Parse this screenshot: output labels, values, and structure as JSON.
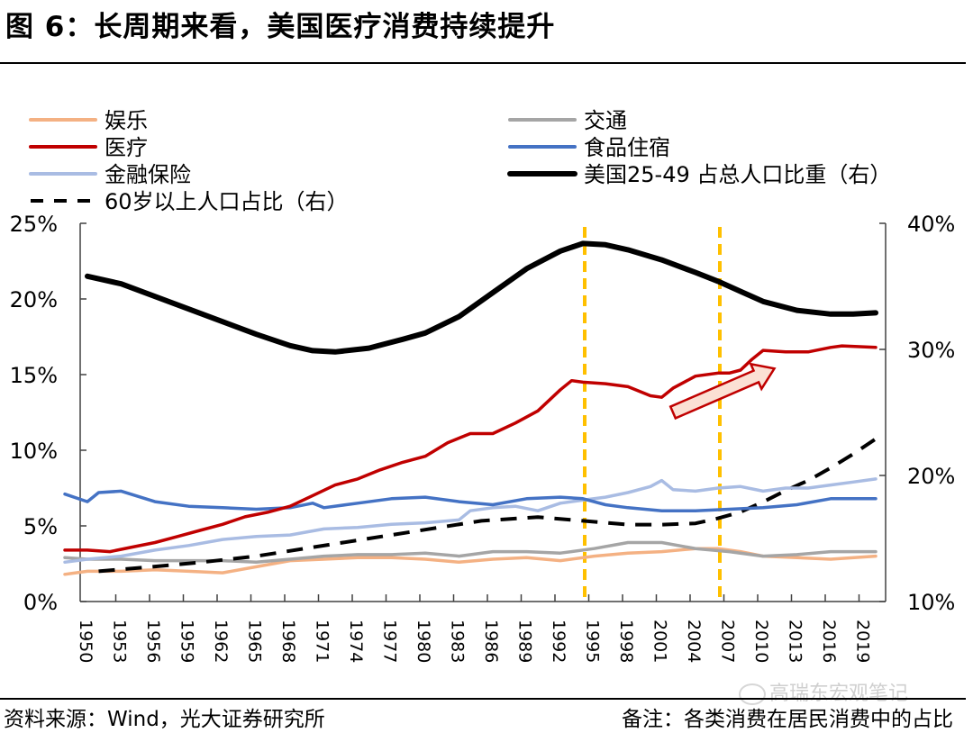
{
  "header": {
    "title": "图 6：长周期来看，美国医疗消费持续提升"
  },
  "footer": {
    "source": "资料来源：Wind，光大证券研究所",
    "note": "备注：各类消费在居民消费中的占比",
    "watermark": "高瑞东宏观笔记"
  },
  "chart_data": {
    "type": "line",
    "title": "长周期来看，美国医疗消费持续提升",
    "xlabel": "",
    "ylabel": "",
    "y_left": {
      "ylim": [
        0,
        25
      ],
      "ticks": [
        "0%",
        "5%",
        "10%",
        "15%",
        "20%",
        "25%"
      ],
      "tick_values": [
        0,
        5,
        10,
        15,
        20,
        25
      ]
    },
    "y_right": {
      "ylim": [
        10,
        40
      ],
      "ticks": [
        "10%",
        "20%",
        "30%",
        "40%"
      ],
      "tick_values": [
        10,
        20,
        30,
        40
      ]
    },
    "x_range": [
      1948,
      2021
    ],
    "x_tick_labels": [
      "1950",
      "1953",
      "1956",
      "1959",
      "1962",
      "1965",
      "1968",
      "1971",
      "1974",
      "1977",
      "1980",
      "1983",
      "1986",
      "1989",
      "1992",
      "1995",
      "1998",
      "2001",
      "2004",
      "2007",
      "2010",
      "2013",
      "2016",
      "2019"
    ],
    "grid": false,
    "legend_placement": "top",
    "annotations": {
      "vertical_markers": [
        1994,
        2006
      ],
      "marker_color": "#FFC000",
      "arrow": {
        "from": [
          2002,
          12.5
        ],
        "to": [
          2011,
          15.4
        ],
        "fill": "#FBE0D4",
        "stroke": "#C00000"
      }
    },
    "series": [
      {
        "name": "娱乐",
        "axis": "left",
        "color": "#F4B183",
        "style": "solid",
        "x": [
          1948,
          1950,
          1953,
          1956,
          1959,
          1962,
          1965,
          1968,
          1971,
          1974,
          1977,
          1980,
          1983,
          1986,
          1989,
          1992,
          1995,
          1998,
          2001,
          2004,
          2006,
          2008,
          2010,
          2013,
          2016,
          2020
        ],
        "values": [
          1.8,
          2.0,
          2.0,
          2.1,
          2.0,
          1.9,
          2.3,
          2.7,
          2.8,
          2.9,
          2.9,
          2.8,
          2.6,
          2.8,
          2.9,
          2.7,
          3.0,
          3.2,
          3.3,
          3.5,
          3.5,
          3.3,
          3.0,
          2.9,
          2.8,
          3.0
        ]
      },
      {
        "name": "医疗",
        "axis": "left",
        "color": "#C00000",
        "style": "solid",
        "x": [
          1948,
          1950,
          1952,
          1954,
          1956,
          1958,
          1960,
          1962,
          1964,
          1966,
          1968,
          1970,
          1972,
          1974,
          1976,
          1978,
          1980,
          1982,
          1984,
          1986,
          1988,
          1990,
          1992,
          1993,
          1994,
          1996,
          1998,
          2000,
          2001,
          2002,
          2004,
          2006,
          2007,
          2008,
          2009,
          2010,
          2012,
          2014,
          2016,
          2017,
          2020
        ],
        "values": [
          3.4,
          3.4,
          3.3,
          3.6,
          3.9,
          4.3,
          4.7,
          5.1,
          5.6,
          5.9,
          6.3,
          7.0,
          7.7,
          8.1,
          8.7,
          9.2,
          9.6,
          10.5,
          11.1,
          11.1,
          11.8,
          12.6,
          14.0,
          14.6,
          14.5,
          14.4,
          14.2,
          13.6,
          13.5,
          14.1,
          14.9,
          15.1,
          15.1,
          15.3,
          16.0,
          16.6,
          16.5,
          16.5,
          16.8,
          16.9,
          16.8
        ]
      },
      {
        "name": "金融保险",
        "axis": "left",
        "color": "#A9BCE3",
        "style": "solid",
        "x": [
          1948,
          1950,
          1953,
          1956,
          1959,
          1962,
          1965,
          1968,
          1971,
          1974,
          1977,
          1980,
          1983,
          1984,
          1986,
          1988,
          1990,
          1992,
          1994,
          1996,
          1998,
          2000,
          2001,
          2002,
          2004,
          2006,
          2008,
          2010,
          2012,
          2014,
          2016,
          2018,
          2020
        ],
        "values": [
          2.6,
          2.8,
          3.0,
          3.4,
          3.7,
          4.1,
          4.3,
          4.4,
          4.8,
          4.9,
          5.1,
          5.2,
          5.4,
          6.0,
          6.2,
          6.3,
          6.0,
          6.5,
          6.7,
          6.9,
          7.2,
          7.6,
          8.0,
          7.4,
          7.3,
          7.5,
          7.6,
          7.3,
          7.5,
          7.5,
          7.7,
          7.9,
          8.1
        ]
      },
      {
        "name": "60岁以上人口占比（右）",
        "axis": "right",
        "color": "#000000",
        "style": "dashed",
        "x": [
          1951,
          1955,
          1960,
          1965,
          1970,
          1975,
          1980,
          1985,
          1990,
          1994,
          1998,
          2001,
          2004,
          2006,
          2008,
          2010,
          2012,
          2014,
          2016,
          2018,
          2020
        ],
        "values": [
          12.4,
          12.7,
          13.1,
          13.6,
          14.3,
          15.0,
          15.7,
          16.4,
          16.7,
          16.4,
          16.1,
          16.1,
          16.2,
          16.6,
          17.1,
          17.9,
          18.8,
          19.6,
          20.6,
          21.7,
          22.9
        ]
      },
      {
        "name": "交通",
        "axis": "left",
        "color": "#A5A5A5",
        "style": "solid",
        "x": [
          1948,
          1950,
          1953,
          1956,
          1959,
          1962,
          1965,
          1968,
          1971,
          1974,
          1977,
          1980,
          1983,
          1986,
          1989,
          1992,
          1995,
          1998,
          2001,
          2004,
          2007,
          2010,
          2013,
          2016,
          2020
        ],
        "values": [
          2.9,
          2.8,
          2.8,
          2.7,
          2.7,
          2.7,
          2.6,
          2.8,
          3.0,
          3.1,
          3.1,
          3.2,
          3.0,
          3.3,
          3.3,
          3.2,
          3.5,
          3.9,
          3.9,
          3.5,
          3.3,
          3.0,
          3.1,
          3.3,
          3.3
        ]
      },
      {
        "name": "食品住宿",
        "axis": "left",
        "color": "#4472C4",
        "style": "solid",
        "x": [
          1948,
          1950,
          1951,
          1953,
          1956,
          1959,
          1962,
          1965,
          1968,
          1970,
          1971,
          1974,
          1977,
          1980,
          1983,
          1986,
          1989,
          1992,
          1994,
          1996,
          1998,
          2001,
          2004,
          2007,
          2010,
          2013,
          2016,
          2020
        ],
        "values": [
          7.1,
          6.6,
          7.2,
          7.3,
          6.6,
          6.3,
          6.2,
          6.1,
          6.2,
          6.5,
          6.2,
          6.5,
          6.8,
          6.9,
          6.6,
          6.4,
          6.8,
          6.9,
          6.8,
          6.4,
          6.2,
          6.0,
          6.0,
          6.1,
          6.2,
          6.4,
          6.8,
          6.8
        ]
      },
      {
        "name": "美国25-49 占总人口比重（右）",
        "axis": "right",
        "color": "#000000",
        "style": "solid-thick",
        "x": [
          1950,
          1953,
          1956,
          1959,
          1962,
          1965,
          1968,
          1970,
          1972,
          1975,
          1978,
          1980,
          1983,
          1986,
          1989,
          1992,
          1994,
          1996,
          1998,
          2001,
          2004,
          2006,
          2008,
          2010,
          2013,
          2016,
          2018,
          2020
        ],
        "values": [
          35.8,
          35.2,
          34.2,
          33.2,
          32.2,
          31.2,
          30.3,
          29.9,
          29.8,
          30.1,
          30.8,
          31.3,
          32.6,
          34.5,
          36.4,
          37.8,
          38.4,
          38.3,
          37.9,
          37.1,
          36.1,
          35.4,
          34.6,
          33.8,
          33.1,
          32.8,
          32.8,
          32.9
        ]
      }
    ]
  },
  "legend": {
    "left": [
      "娱乐",
      "医疗",
      "金融保险",
      "60岁以上人口占比（右）"
    ],
    "right": [
      "交通",
      "食品住宿",
      "美国25-49 占总人口比重（右）"
    ]
  }
}
